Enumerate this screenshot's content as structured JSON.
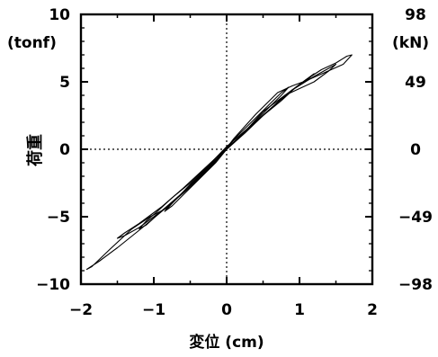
{
  "chart_data": {
    "type": "line",
    "title": "",
    "xlabel": "変位 (cm)",
    "ylabel": "荷重",
    "y_unit_left": "(tonf)",
    "y_unit_right": "(kN)",
    "xlim": [
      -2,
      2
    ],
    "ylim": [
      -10,
      10
    ],
    "x_ticks": [
      -2,
      -1,
      0,
      1,
      2
    ],
    "x_tick_labels": [
      "−2",
      "−1",
      "0",
      "1",
      "2"
    ],
    "y_ticks_left": [
      10,
      5,
      0,
      -5,
      -10
    ],
    "y_tick_labels_left": [
      "10",
      "5",
      "0",
      "−5",
      "−10"
    ],
    "y_ticks_right": [
      10,
      5,
      0,
      -5,
      -10
    ],
    "y_tick_labels_right": [
      "98",
      "49",
      "0",
      "−49",
      "−98"
    ],
    "grid": false,
    "zero_lines": "dotted",
    "legend": "none",
    "series": [
      {
        "x": [
          0,
          0.15,
          0.3,
          0.45,
          0.6,
          0.75,
          0.85,
          0.75,
          0.6,
          0.45,
          0.3,
          0.15,
          0,
          -0.15,
          -0.3,
          -0.45,
          -0.6,
          -0.75,
          -0.85,
          -0.75,
          -0.6,
          -0.45,
          -0.3,
          -0.15,
          0
        ],
        "y": [
          0,
          0.8,
          1.6,
          2.4,
          3.2,
          4.0,
          4.6,
          4.2,
          3.4,
          2.6,
          1.8,
          1.0,
          0.1,
          -0.8,
          -1.6,
          -2.4,
          -3.2,
          -4.0,
          -4.6,
          -4.2,
          -3.4,
          -2.6,
          -1.8,
          -1.0,
          0
        ]
      },
      {
        "x": [
          0,
          0.25,
          0.5,
          0.75,
          0.95,
          1.1,
          1.2,
          1.1,
          0.9,
          0.6,
          0.3,
          0,
          -0.25,
          -0.5,
          -0.75,
          -0.95,
          -1.1,
          -1.2,
          -1.1,
          -0.9,
          -0.6,
          -0.3,
          0
        ],
        "y": [
          0,
          1.2,
          2.5,
          3.6,
          4.6,
          5.2,
          5.6,
          5.1,
          4.4,
          3.0,
          1.6,
          0.2,
          -1.2,
          -2.5,
          -3.6,
          -4.6,
          -5.3,
          -5.9,
          -5.6,
          -4.6,
          -3.2,
          -1.7,
          0
        ]
      },
      {
        "x": [
          0,
          0.3,
          0.6,
          0.9,
          1.2,
          1.4,
          1.5,
          1.4,
          1.2,
          1.0,
          0.8,
          0.5,
          0.2,
          0,
          -0.3,
          -0.6,
          -0.9,
          -1.2,
          -1.4,
          -1.5,
          -1.4,
          -1.2,
          -1.0,
          -0.8,
          -0.5,
          -0.2,
          0
        ],
        "y": [
          0,
          1.5,
          3.0,
          4.4,
          5.4,
          6.0,
          6.3,
          5.8,
          5.0,
          4.5,
          4.0,
          2.8,
          1.0,
          0.1,
          -1.4,
          -2.9,
          -4.3,
          -5.5,
          -6.2,
          -6.6,
          -6.4,
          -5.8,
          -5.0,
          -4.2,
          -2.8,
          -1.2,
          0
        ]
      },
      {
        "x": [
          0,
          0.4,
          0.8,
          1.1,
          1.3,
          1.5,
          1.65,
          1.72,
          1.6,
          1.35,
          1.1,
          0.9,
          0.7,
          0.4,
          0.1,
          0,
          -0.4,
          -0.8,
          -1.2,
          -1.5,
          -1.75,
          -1.92,
          -1.85,
          -1.6,
          -1.3,
          -1.05,
          -0.8,
          -0.5,
          -0.2,
          0
        ],
        "y": [
          0,
          2.0,
          4.0,
          5.2,
          5.9,
          6.4,
          6.9,
          7.0,
          6.3,
          5.7,
          5.1,
          4.7,
          4.2,
          2.6,
          0.8,
          0.1,
          -2.2,
          -4.2,
          -6.0,
          -7.3,
          -8.3,
          -8.9,
          -8.7,
          -7.4,
          -5.9,
          -5.0,
          -4.3,
          -2.6,
          -1.0,
          0
        ]
      }
    ]
  }
}
